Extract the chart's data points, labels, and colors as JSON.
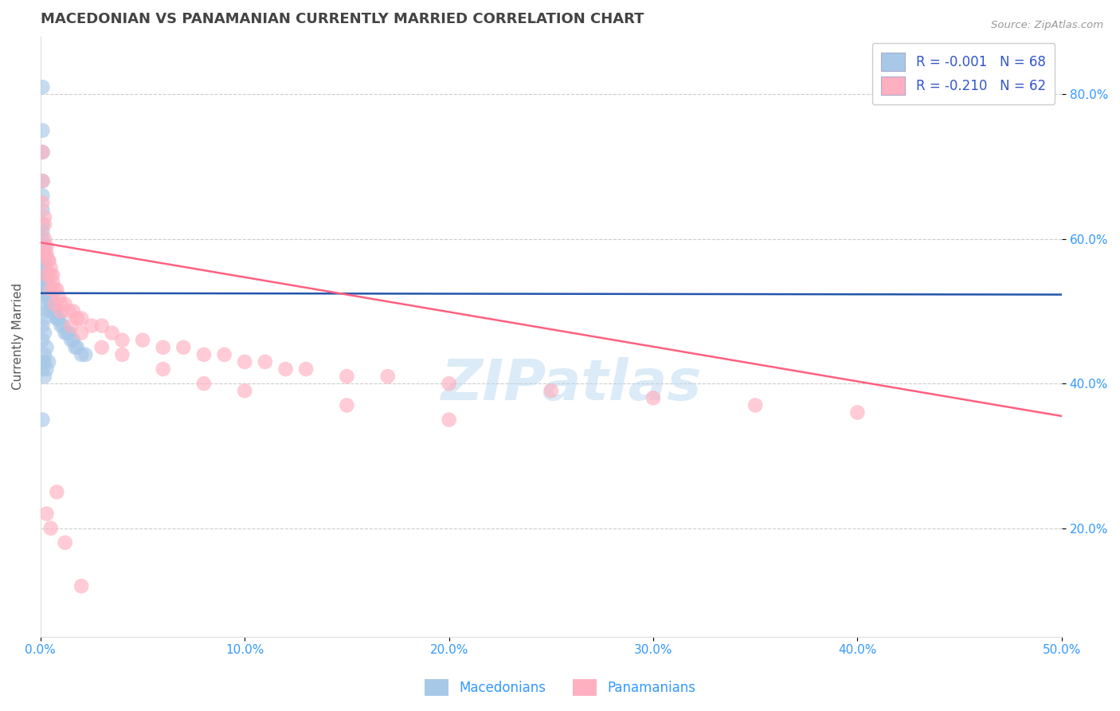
{
  "title": "MACEDONIAN VS PANAMANIAN CURRENTLY MARRIED CORRELATION CHART",
  "source_text": "Source: ZipAtlas.com",
  "ylabel": "Currently Married",
  "xmin": 0.0,
  "xmax": 0.5,
  "ymin": 0.05,
  "ymax": 0.88,
  "yticks": [
    0.2,
    0.4,
    0.6,
    0.8
  ],
  "ytick_labels": [
    "20.0%",
    "40.0%",
    "60.0%",
    "80.0%"
  ],
  "xticks": [
    0.0,
    0.1,
    0.2,
    0.3,
    0.4,
    0.5
  ],
  "xtick_labels": [
    "0.0%",
    "10.0%",
    "20.0%",
    "30.0%",
    "40.0%",
    "50.0%"
  ],
  "macedonian_color": "#A8C8E8",
  "panamanian_color": "#FFB0C0",
  "macedonian_line_color": "#2255AA",
  "panamanian_line_color": "#FF6080",
  "legend1_label": "R = -0.001   N = 68",
  "legend2_label": "R = -0.210   N = 62",
  "legend_color_text": "#3355CC",
  "grid_color": "#CCCCCC",
  "grid_linestyle": "--",
  "background_color": "#FFFFFF",
  "title_color": "#444444",
  "axis_label_color": "#555555",
  "tick_color": "#3399FF",
  "watermark_text": "ZIPatlas",
  "watermark_color": "#B8D8F0",
  "watermark_alpha": 0.5,
  "legend_entries": [
    "Macedonians",
    "Panamanians"
  ],
  "mac_x": [
    0.001,
    0.001,
    0.001,
    0.001,
    0.001,
    0.001,
    0.001,
    0.001,
    0.001,
    0.002,
    0.002,
    0.002,
    0.002,
    0.002,
    0.002,
    0.002,
    0.003,
    0.003,
    0.003,
    0.003,
    0.003,
    0.003,
    0.004,
    0.004,
    0.004,
    0.004,
    0.005,
    0.005,
    0.005,
    0.006,
    0.006,
    0.006,
    0.007,
    0.007,
    0.008,
    0.008,
    0.009,
    0.01,
    0.011,
    0.012,
    0.013,
    0.014,
    0.015,
    0.016,
    0.017,
    0.018,
    0.02,
    0.022,
    0.001,
    0.002,
    0.003,
    0.001,
    0.002,
    0.001,
    0.003,
    0.004,
    0.002,
    0.001,
    0.005,
    0.003,
    0.002,
    0.001,
    0.002,
    0.001,
    0.003,
    0.002,
    0.004,
    0.001
  ],
  "mac_y": [
    0.81,
    0.75,
    0.72,
    0.68,
    0.66,
    0.64,
    0.62,
    0.61,
    0.6,
    0.59,
    0.58,
    0.58,
    0.57,
    0.57,
    0.56,
    0.56,
    0.55,
    0.55,
    0.55,
    0.54,
    0.54,
    0.54,
    0.53,
    0.53,
    0.53,
    0.52,
    0.52,
    0.52,
    0.51,
    0.51,
    0.51,
    0.5,
    0.5,
    0.5,
    0.49,
    0.49,
    0.49,
    0.48,
    0.48,
    0.47,
    0.47,
    0.47,
    0.46,
    0.46,
    0.45,
    0.45,
    0.44,
    0.44,
    0.43,
    0.43,
    0.42,
    0.42,
    0.41,
    0.53,
    0.53,
    0.52,
    0.52,
    0.51,
    0.5,
    0.5,
    0.49,
    0.48,
    0.47,
    0.46,
    0.45,
    0.44,
    0.43,
    0.35
  ],
  "pan_x": [
    0.001,
    0.001,
    0.001,
    0.002,
    0.002,
    0.002,
    0.003,
    0.003,
    0.004,
    0.004,
    0.005,
    0.005,
    0.006,
    0.006,
    0.007,
    0.008,
    0.009,
    0.01,
    0.012,
    0.014,
    0.016,
    0.018,
    0.02,
    0.025,
    0.03,
    0.035,
    0.04,
    0.05,
    0.06,
    0.07,
    0.08,
    0.09,
    0.1,
    0.11,
    0.12,
    0.13,
    0.15,
    0.17,
    0.2,
    0.25,
    0.3,
    0.35,
    0.4,
    0.002,
    0.003,
    0.005,
    0.007,
    0.01,
    0.015,
    0.02,
    0.03,
    0.04,
    0.06,
    0.08,
    0.1,
    0.15,
    0.2,
    0.003,
    0.005,
    0.008,
    0.012,
    0.02
  ],
  "pan_y": [
    0.72,
    0.68,
    0.65,
    0.63,
    0.62,
    0.6,
    0.59,
    0.58,
    0.57,
    0.57,
    0.56,
    0.55,
    0.55,
    0.54,
    0.53,
    0.53,
    0.52,
    0.51,
    0.51,
    0.5,
    0.5,
    0.49,
    0.49,
    0.48,
    0.48,
    0.47,
    0.46,
    0.46,
    0.45,
    0.45,
    0.44,
    0.44,
    0.43,
    0.43,
    0.42,
    0.42,
    0.41,
    0.41,
    0.4,
    0.39,
    0.38,
    0.37,
    0.36,
    0.58,
    0.55,
    0.53,
    0.51,
    0.5,
    0.48,
    0.47,
    0.45,
    0.44,
    0.42,
    0.4,
    0.39,
    0.37,
    0.35,
    0.22,
    0.2,
    0.25,
    0.18,
    0.12
  ],
  "mac_line_x0": 0.0,
  "mac_line_x1": 0.5,
  "mac_line_y0": 0.525,
  "mac_line_y1": 0.523,
  "pan_line_x0": 0.0,
  "pan_line_x1": 0.5,
  "pan_line_y0": 0.595,
  "pan_line_y1": 0.355
}
